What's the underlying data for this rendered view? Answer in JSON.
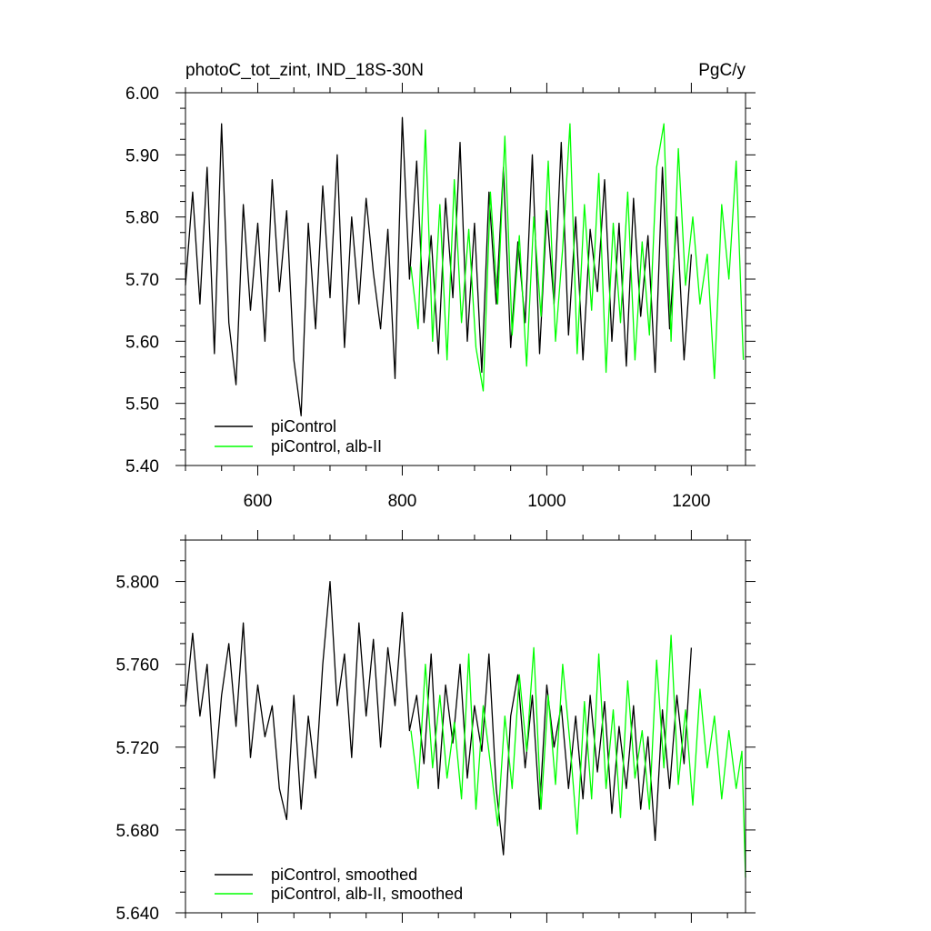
{
  "chart_data": [
    {
      "type": "line",
      "title_left": "photoC_tot_zint, IND_18S-30N",
      "title_right": "PgC/y",
      "xlabel": "",
      "ylabel": "",
      "xlim": [
        500,
        1275
      ],
      "ylim": [
        5.4,
        6.0
      ],
      "x_ticks": [
        600,
        800,
        1000,
        1200
      ],
      "x_tick_labels": [
        "600",
        "800",
        "1000",
        "1200"
      ],
      "y_ticks": [
        5.4,
        5.5,
        5.6,
        5.7,
        5.8,
        5.9,
        6.0
      ],
      "y_tick_labels": [
        "5.40",
        "5.50",
        "5.60",
        "5.70",
        "5.80",
        "5.90",
        "6.00"
      ],
      "legend_position": "bottom-left",
      "series": [
        {
          "name": "piControl",
          "color": "#000000",
          "x": [
            500,
            510,
            520,
            530,
            540,
            550,
            560,
            570,
            580,
            590,
            600,
            610,
            620,
            630,
            640,
            650,
            660,
            670,
            680,
            690,
            700,
            710,
            720,
            730,
            740,
            750,
            760,
            770,
            780,
            790,
            800,
            810,
            820,
            830,
            840,
            850,
            860,
            870,
            880,
            890,
            900,
            910,
            920,
            930,
            940,
            950,
            960,
            970,
            980,
            990,
            1000,
            1010,
            1020,
            1030,
            1040,
            1050,
            1060,
            1070,
            1080,
            1090,
            1100,
            1110,
            1120,
            1130,
            1140,
            1150,
            1160,
            1170,
            1180,
            1190,
            1200
          ],
          "values": [
            5.69,
            5.84,
            5.66,
            5.88,
            5.58,
            5.95,
            5.63,
            5.53,
            5.82,
            5.65,
            5.79,
            5.6,
            5.86,
            5.68,
            5.81,
            5.57,
            5.48,
            5.79,
            5.62,
            5.85,
            5.67,
            5.9,
            5.59,
            5.8,
            5.66,
            5.83,
            5.71,
            5.62,
            5.78,
            5.54,
            5.96,
            5.7,
            5.89,
            5.63,
            5.77,
            5.58,
            5.83,
            5.67,
            5.92,
            5.6,
            5.79,
            5.55,
            5.84,
            5.66,
            5.88,
            5.59,
            5.76,
            5.63,
            5.9,
            5.58,
            5.81,
            5.66,
            5.92,
            5.61,
            5.8,
            5.57,
            5.78,
            5.68,
            5.86,
            5.6,
            5.79,
            5.56,
            5.83,
            5.64,
            5.77,
            5.55,
            5.88,
            5.62,
            5.8,
            5.57,
            5.74
          ]
        },
        {
          "name": "piControl, alb-II",
          "color": "#00ff00",
          "x": [
            812,
            822,
            832,
            842,
            852,
            862,
            872,
            882,
            892,
            902,
            912,
            922,
            932,
            942,
            952,
            962,
            972,
            982,
            992,
            1002,
            1012,
            1022,
            1032,
            1042,
            1052,
            1062,
            1072,
            1082,
            1092,
            1102,
            1112,
            1122,
            1132,
            1142,
            1152,
            1162,
            1172,
            1182,
            1192,
            1202,
            1212,
            1222,
            1232,
            1242,
            1252,
            1262,
            1272
          ],
          "values": [
            5.72,
            5.62,
            5.94,
            5.6,
            5.82,
            5.57,
            5.86,
            5.63,
            5.78,
            5.59,
            5.52,
            5.84,
            5.66,
            5.93,
            5.61,
            5.77,
            5.56,
            5.8,
            5.64,
            5.89,
            5.6,
            5.75,
            5.95,
            5.58,
            5.82,
            5.65,
            5.87,
            5.55,
            5.79,
            5.63,
            5.84,
            5.57,
            5.76,
            5.61,
            5.88,
            5.95,
            5.6,
            5.91,
            5.69,
            5.8,
            5.66,
            5.74,
            5.54,
            5.82,
            5.7,
            5.89,
            5.57
          ]
        }
      ]
    },
    {
      "type": "line",
      "xlabel": "",
      "ylabel": "",
      "xlim": [
        500,
        1275
      ],
      "ylim": [
        5.64,
        5.82
      ],
      "x_ticks": [
        600,
        800,
        1000,
        1200
      ],
      "y_ticks": [
        5.64,
        5.68,
        5.72,
        5.76,
        5.8
      ],
      "y_tick_labels": [
        "5.640",
        "5.680",
        "5.720",
        "5.760",
        "5.800"
      ],
      "legend_position": "bottom-left",
      "series": [
        {
          "name": "piControl, smoothed",
          "color": "#000000",
          "x": [
            500,
            510,
            520,
            530,
            540,
            550,
            560,
            570,
            580,
            590,
            600,
            610,
            620,
            630,
            640,
            650,
            660,
            670,
            680,
            690,
            700,
            710,
            720,
            730,
            740,
            750,
            760,
            770,
            780,
            790,
            800,
            810,
            820,
            830,
            840,
            850,
            860,
            870,
            880,
            890,
            900,
            910,
            920,
            930,
            940,
            950,
            960,
            970,
            980,
            990,
            1000,
            1010,
            1020,
            1030,
            1040,
            1050,
            1060,
            1070,
            1080,
            1090,
            1100,
            1110,
            1120,
            1130,
            1140,
            1150,
            1160,
            1170,
            1180,
            1190,
            1200
          ],
          "values": [
            5.74,
            5.775,
            5.735,
            5.76,
            5.705,
            5.745,
            5.77,
            5.73,
            5.78,
            5.715,
            5.75,
            5.725,
            5.74,
            5.7,
            5.685,
            5.745,
            5.69,
            5.735,
            5.705,
            5.76,
            5.8,
            5.74,
            5.765,
            5.715,
            5.78,
            5.735,
            5.772,
            5.72,
            5.768,
            5.74,
            5.785,
            5.728,
            5.745,
            5.712,
            5.765,
            5.7,
            5.75,
            5.722,
            5.76,
            5.705,
            5.74,
            5.718,
            5.765,
            5.7,
            5.668,
            5.735,
            5.755,
            5.71,
            5.745,
            5.69,
            5.75,
            5.72,
            5.74,
            5.7,
            5.735,
            5.695,
            5.745,
            5.708,
            5.742,
            5.688,
            5.73,
            5.7,
            5.74,
            5.69,
            5.725,
            5.675,
            5.738,
            5.7,
            5.745,
            5.712,
            5.768
          ]
        },
        {
          "name": "piControl, alb-II, smoothed",
          "color": "#00ff00",
          "x": [
            812,
            822,
            832,
            842,
            852,
            862,
            872,
            882,
            892,
            902,
            912,
            922,
            932,
            942,
            952,
            962,
            972,
            982,
            992,
            1002,
            1012,
            1022,
            1032,
            1042,
            1052,
            1062,
            1072,
            1082,
            1092,
            1102,
            1112,
            1122,
            1132,
            1142,
            1152,
            1162,
            1172,
            1182,
            1192,
            1202,
            1212,
            1222,
            1232,
            1242,
            1252,
            1262,
            1270,
            1275
          ],
          "values": [
            5.728,
            5.7,
            5.76,
            5.71,
            5.745,
            5.705,
            5.732,
            5.695,
            5.765,
            5.69,
            5.74,
            5.712,
            5.682,
            5.735,
            5.7,
            5.755,
            5.718,
            5.768,
            5.69,
            5.745,
            5.702,
            5.76,
            5.722,
            5.678,
            5.742,
            5.695,
            5.765,
            5.7,
            5.738,
            5.686,
            5.752,
            5.705,
            5.728,
            5.69,
            5.762,
            5.71,
            5.774,
            5.702,
            5.738,
            5.692,
            5.748,
            5.71,
            5.735,
            5.695,
            5.728,
            5.7,
            5.718,
            5.657
          ]
        }
      ]
    }
  ]
}
